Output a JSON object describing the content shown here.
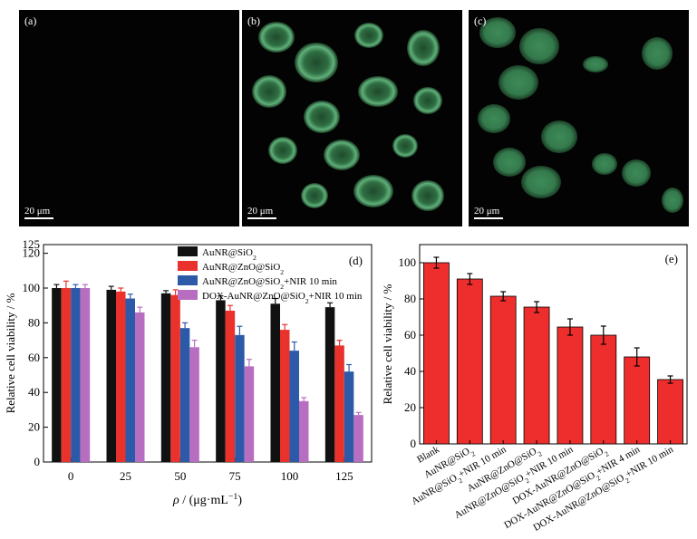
{
  "panels": {
    "a": {
      "label": "(a)",
      "scale": "20 μm"
    },
    "b": {
      "label": "(b)",
      "scale": "20 μm"
    },
    "c": {
      "label": "(c)",
      "scale": "20 μm"
    }
  },
  "chart_data": [
    {
      "id": "d",
      "type": "bar",
      "panel_label": "(d)",
      "xlabel_main": "ρ",
      "xlabel_unit": " / (μg·mL",
      "xlabel_sup": "−1",
      "xlabel_tail": ")",
      "ylabel": "Relative cell viability / %",
      "ylim": [
        0,
        125
      ],
      "yticks": [
        0,
        20,
        40,
        60,
        80,
        100,
        120,
        125
      ],
      "categories": [
        "0",
        "25",
        "50",
        "75",
        "100",
        "125"
      ],
      "legend": "top-right",
      "series": [
        {
          "name": "AuNR@SiO",
          "sub": "2",
          "tail": "",
          "color": "#111111",
          "values": [
            100,
            99,
            97,
            93,
            91,
            89
          ],
          "errors": [
            2,
            2,
            1.5,
            2.5,
            3,
            2.5
          ]
        },
        {
          "name": "AuNR@ZnO@SiO",
          "sub": "2",
          "tail": "",
          "color": "#e8322b",
          "values": [
            100,
            98,
            96,
            87,
            76,
            67
          ],
          "errors": [
            4,
            2,
            3,
            3,
            3,
            3
          ]
        },
        {
          "name": "AuNR@ZnO@SiO",
          "sub": "2",
          "tail": "+NIR 10 min",
          "color": "#2c5aa8",
          "values": [
            100,
            94,
            77,
            73,
            64,
            52
          ],
          "errors": [
            2,
            2.5,
            3,
            5,
            5,
            4
          ]
        },
        {
          "name": "DOX-AuNR@ZnO@SiO",
          "sub": "2",
          "tail": "+NIR 10 min",
          "color": "#b86ec0",
          "values": [
            100,
            86,
            66,
            55,
            35,
            27
          ],
          "errors": [
            2,
            3,
            4,
            4,
            2,
            1.5
          ]
        }
      ]
    },
    {
      "id": "e",
      "type": "bar",
      "panel_label": "(e)",
      "ylabel": "Relative cell viability / %",
      "ylim": [
        0,
        110
      ],
      "yticks": [
        0,
        20,
        40,
        60,
        80,
        100
      ],
      "color": "#ee2d2d",
      "categories": [
        {
          "pre": "Blank",
          "sub": "",
          "post": ""
        },
        {
          "pre": "AuNR@SiO",
          "sub": "2",
          "post": ""
        },
        {
          "pre": "AuNR@SiO",
          "sub": "2",
          "post": "+NIR 10 min"
        },
        {
          "pre": "AuNR@ZnO@SiO",
          "sub": "2",
          "post": ""
        },
        {
          "pre": "AuNR@ZnO@SiO",
          "sub": "2",
          "post": "+NIR 10 min"
        },
        {
          "pre": "DOX-AuNR@ZnO@SiO",
          "sub": "2",
          "post": ""
        },
        {
          "pre": "DOX-AuNR@ZnO@SiO",
          "sub": "2",
          "post": "+NIR 4 min"
        },
        {
          "pre": "DOX-AuNR@ZnO@SiO",
          "sub": "2",
          "post": "+NIR 10 min"
        }
      ],
      "values": [
        100,
        91,
        81.5,
        75.5,
        64.5,
        60,
        48,
        35.5
      ],
      "errors": [
        3,
        3,
        2.5,
        3,
        4.5,
        5,
        5,
        2
      ]
    }
  ]
}
